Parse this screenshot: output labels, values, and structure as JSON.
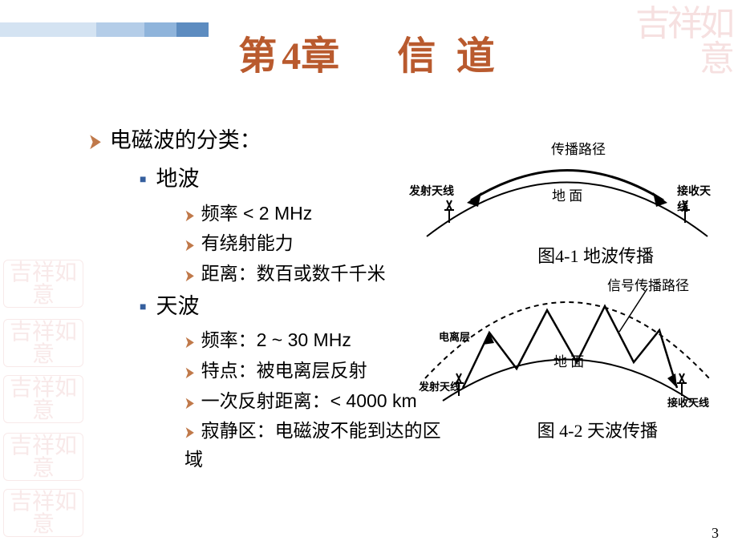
{
  "title": {
    "pre": "第",
    "num": "4",
    "mid": "章",
    "sp": "　",
    "t1": "信",
    "t2": "道"
  },
  "seal_tr": "吉祥如意",
  "seal_left": "吉祥如意",
  "bullet": {
    "hdr": "电磁波的分类：",
    "sub1": "地波",
    "sub1_i1": "频率 < 2 MHz",
    "sub1_i2": "有绕射能力",
    "sub1_i3": "距离：数百或数千千米",
    "sub2": "天波",
    "sub2_i1": "频率：2 ~ 30 MHz",
    "sub2_i2": "特点：被电离层反射",
    "sub2_i3": "一次反射距离：< 4000 km",
    "sub2_i4": "寂静区：电磁波不能到达的区域"
  },
  "fig1": {
    "path_label": "传播路径",
    "ground": "地 面",
    "tx": "发射天线",
    "rx": "接收天线",
    "caption": "图4-1 地波传播",
    "colors": {
      "line": "#000000",
      "arrow": "#000000"
    },
    "arc_stroke_width": 2,
    "path_stroke_width": 3,
    "font_size_label": 13,
    "font_size_ground": 14
  },
  "fig2": {
    "signal_label": "信号传播路径",
    "ionosphere": "电离层",
    "ground": "地 面",
    "tx": "发射天线",
    "rx": "接收天线",
    "caption": "图 4-2 天波传播",
    "colors": {
      "line": "#000000",
      "dash": "#000000"
    },
    "arc_stroke_width": 2,
    "dash_pattern": "5,4",
    "font_size_label": 13,
    "font_size_ground": 14
  },
  "pagenum": "3",
  "colors": {
    "title": "#b95a2e",
    "arrow": "#c0794a",
    "square": "#355f9e",
    "seal": "#f0c8c8",
    "bg": "#ffffff"
  },
  "seal_positions": [
    324,
    398,
    468,
    540,
    610
  ]
}
